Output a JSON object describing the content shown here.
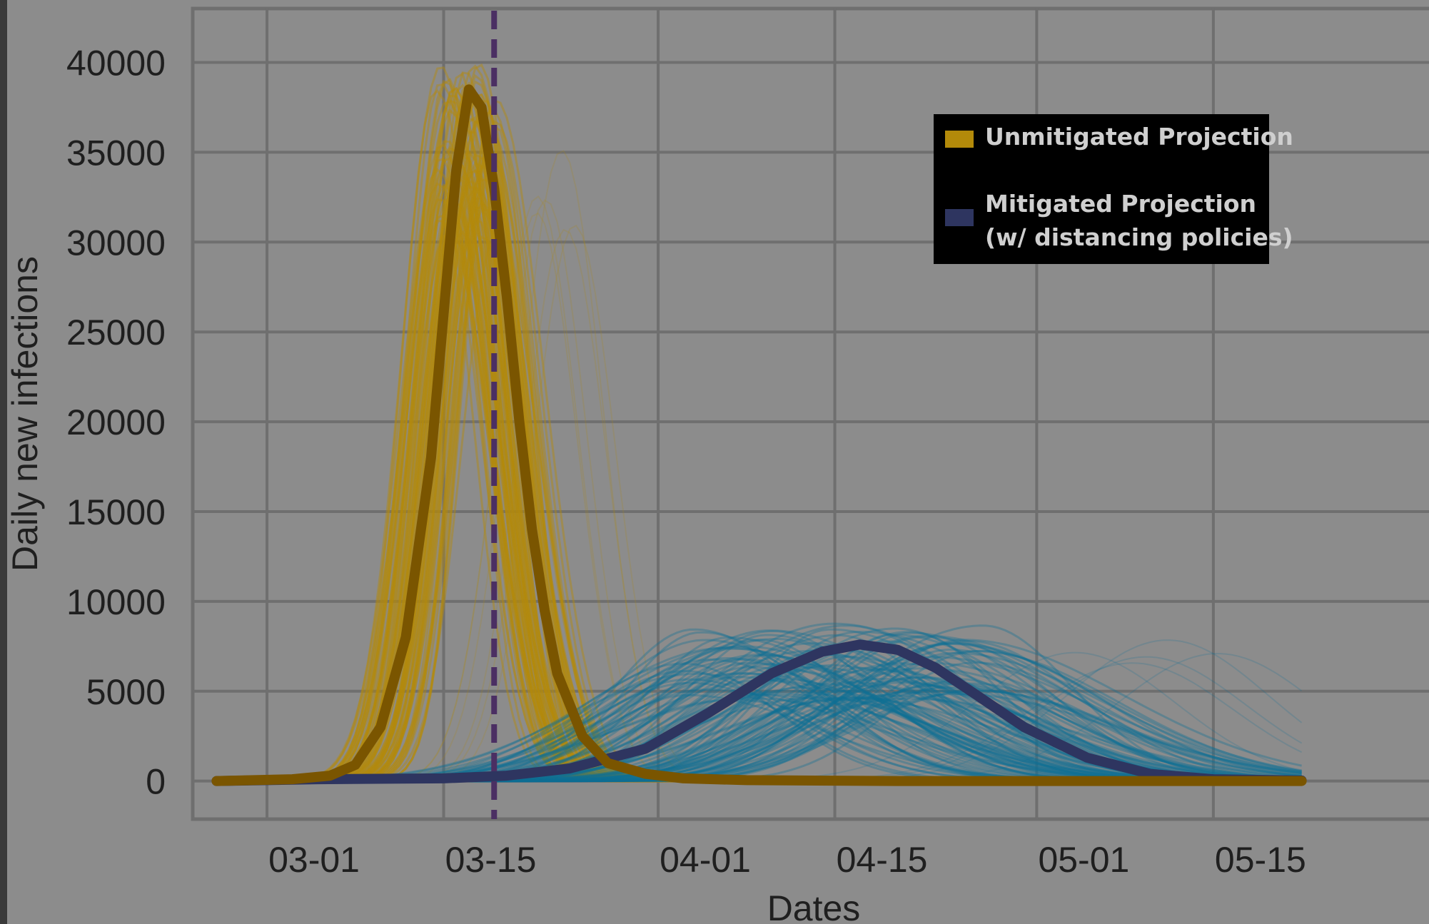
{
  "colors": {
    "background": "#8c8c8c",
    "frame": "#3a3a3a",
    "grid": "#6f6f6f",
    "unmitigated_ensemble": "#b38a0a",
    "unmitigated_mean": "#7a5500",
    "mitigated_ensemble": "#0e6f95",
    "mitigated_mean": "#2e3560",
    "intervention_line": "#4b2f63",
    "legend_bg": "#000000",
    "legend_text": "#cfcfcf"
  },
  "chart_data": {
    "type": "line",
    "title": "",
    "xlabel": "Dates",
    "ylabel": "Daily new infections",
    "x_tick_labels": [
      "03-01",
      "03-15",
      "04-01",
      "04-15",
      "05-01",
      "05-15"
    ],
    "x_tick_dates": [
      "2020-03-01",
      "2020-03-15",
      "2020-04-01",
      "2020-04-15",
      "2020-05-01",
      "2020-05-15"
    ],
    "y_tick_labels": [
      "0",
      "5000",
      "10000",
      "15000",
      "20000",
      "25000",
      "30000",
      "35000",
      "40000"
    ],
    "y_ticks": [
      0,
      5000,
      10000,
      15000,
      20000,
      25000,
      30000,
      35000,
      40000
    ],
    "xlim": [
      "2020-02-24",
      "2020-05-27"
    ],
    "ylim": [
      -2000,
      43000
    ],
    "grid": true,
    "legend_position": "top-right",
    "legend": [
      {
        "label": "Unmitigated Projection",
        "color": "#b38a0a"
      },
      {
        "label": "Mitigated Projection\n(w/ distancing policies)",
        "color": "#2e3560"
      }
    ],
    "intervention_date": "2020-03-19",
    "series": [
      {
        "name": "Unmitigated Projection",
        "role": "mean",
        "x": [
          "2020-02-26",
          "2020-03-03",
          "2020-03-06",
          "2020-03-08",
          "2020-03-10",
          "2020-03-12",
          "2020-03-14",
          "2020-03-15",
          "2020-03-16",
          "2020-03-17",
          "2020-03-18",
          "2020-03-19",
          "2020-03-20",
          "2020-03-21",
          "2020-03-22",
          "2020-03-23",
          "2020-03-24",
          "2020-03-26",
          "2020-03-28",
          "2020-03-31",
          "2020-04-03",
          "2020-04-08",
          "2020-04-20",
          "2020-05-05",
          "2020-05-22"
        ],
        "y": [
          0,
          100,
          300,
          900,
          3000,
          8000,
          18000,
          26000,
          34000,
          38500,
          37500,
          33000,
          27000,
          20000,
          14000,
          9500,
          6000,
          2500,
          1000,
          400,
          150,
          50,
          0,
          0,
          0
        ]
      },
      {
        "name": "Mitigated Projection (w/ distancing policies)",
        "role": "mean",
        "x": [
          "2020-02-26",
          "2020-03-05",
          "2020-03-15",
          "2020-03-20",
          "2020-03-25",
          "2020-03-31",
          "2020-04-05",
          "2020-04-10",
          "2020-04-14",
          "2020-04-17",
          "2020-04-20",
          "2020-04-23",
          "2020-04-26",
          "2020-04-30",
          "2020-05-05",
          "2020-05-10",
          "2020-05-15",
          "2020-05-22"
        ],
        "y": [
          0,
          100,
          150,
          300,
          700,
          1800,
          3800,
          6000,
          7200,
          7600,
          7300,
          6300,
          4900,
          3000,
          1300,
          400,
          100,
          30
        ]
      }
    ]
  }
}
